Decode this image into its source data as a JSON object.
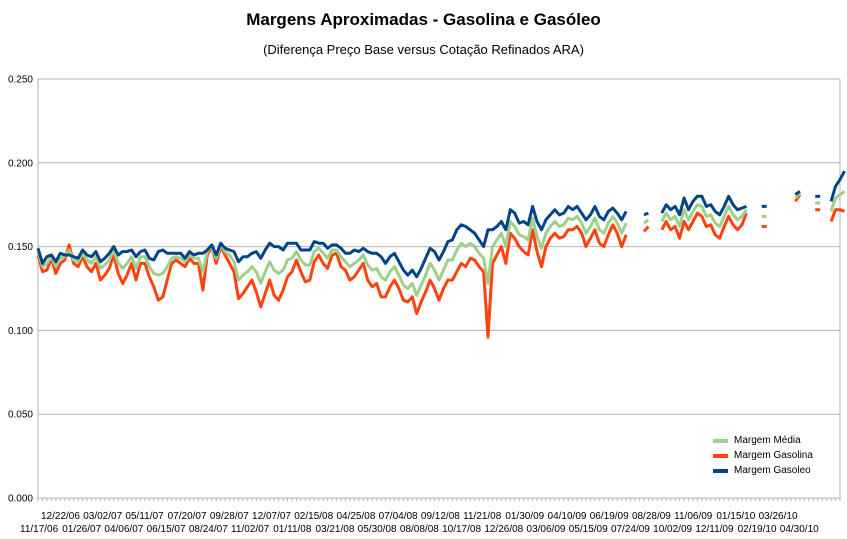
{
  "chart_data": {
    "type": "line",
    "title": "Margens Aproximadas - Gasolina e Gasóleo",
    "subtitle": "(Diferença Preço Base versus Cotação Refinados ARA)",
    "xlabel": "",
    "ylabel": "",
    "ylim": [
      0,
      0.25
    ],
    "y_ticks": [
      "0.000",
      "0.050",
      "0.100",
      "0.150",
      "0.200",
      "0.250"
    ],
    "x_tick_labels_top": [
      "12/22/06",
      "03/02/07",
      "05/11/07",
      "07/20/07",
      "09/28/07",
      "12/07/07",
      "02/15/08",
      "04/25/08",
      "07/04/08",
      "09/12/08",
      "11/21/08",
      "01/30/09",
      "04/10/09",
      "06/19/09",
      "08/28/09",
      "11/06/09",
      "01/15/10",
      "03/26/10"
    ],
    "x_tick_labels_bottom": [
      "11/17/06",
      "01/26/07",
      "04/06/07",
      "06/15/07",
      "08/24/07",
      "11/02/07",
      "01/11/08",
      "03/21/08",
      "05/30/08",
      "08/08/08",
      "10/17/08",
      "12/26/08",
      "03/06/09",
      "05/15/09",
      "07/24/09",
      "10/02/09",
      "12/11/09",
      "02/19/10",
      "04/30/10"
    ],
    "legend": [
      "Margem Média",
      "Margem Gasolina",
      "Margem Gasoleo"
    ],
    "colors": {
      "media": "#9fcf88",
      "gasolina": "#ff420e",
      "gasoleo": "#004586"
    },
    "x_week_range": [
      0,
      180
    ],
    "series": [
      {
        "name": "Margem Gasolina",
        "color": "#ff420e",
        "segments": [
          {
            "start": 0,
            "values": [
              0.145,
              0.135,
              0.136,
              0.143,
              0.134,
              0.14,
              0.142,
              0.151,
              0.14,
              0.138,
              0.144,
              0.138,
              0.135,
              0.14,
              0.13,
              0.133,
              0.137,
              0.145,
              0.134,
              0.128,
              0.133,
              0.14,
              0.13,
              0.14,
              0.14,
              0.132,
              0.126,
              0.118,
              0.12,
              0.13,
              0.14,
              0.142,
              0.14,
              0.138,
              0.143,
              0.14,
              0.14,
              0.124,
              0.145,
              0.15,
              0.14,
              0.15,
              0.145,
              0.14,
              0.135,
              0.119,
              0.122,
              0.126,
              0.13,
              0.123,
              0.114,
              0.122,
              0.13,
              0.121,
              0.118,
              0.124,
              0.132,
              0.135,
              0.142,
              0.135,
              0.129,
              0.13,
              0.141,
              0.145,
              0.14,
              0.137,
              0.145,
              0.146,
              0.138,
              0.136,
              0.13,
              0.132,
              0.136,
              0.14,
              0.13,
              0.126,
              0.128,
              0.12,
              0.12,
              0.126,
              0.13,
              0.125,
              0.118,
              0.117,
              0.12,
              0.11,
              0.117,
              0.123,
              0.13,
              0.125,
              0.118,
              0.125,
              0.13,
              0.13,
              0.135,
              0.14,
              0.138,
              0.143,
              0.142,
              0.138,
              0.135,
              0.096,
              0.14,
              0.145,
              0.15,
              0.14,
              0.158,
              0.155,
              0.15,
              0.147,
              0.145,
              0.16,
              0.147,
              0.138,
              0.15,
              0.155,
              0.158,
              0.155,
              0.156,
              0.16,
              0.16,
              0.162,
              0.158,
              0.15,
              0.155,
              0.16,
              0.152,
              0.15,
              0.157,
              0.163,
              0.158,
              0.15,
              0.157
            ]
          },
          {
            "start": 136,
            "values": [
              0.159,
              0.162
            ]
          },
          {
            "start": 140,
            "values": [
              0.16,
              0.165,
              0.16,
              0.162,
              0.155,
              0.165,
              0.16,
              0.165,
              0.17,
              0.168,
              0.162,
              0.163,
              0.157,
              0.155,
              0.162,
              0.168,
              0.163,
              0.16,
              0.163,
              0.17
            ]
          },
          {
            "start": 163,
            "values": [
              0.162
            ]
          },
          {
            "start": 170,
            "values": [
              0.177,
              0.181
            ]
          },
          {
            "start": 175,
            "values": [
              0.172
            ]
          },
          {
            "start": 178,
            "values": [
              0.165,
              0.172,
              0.172,
              0.171
            ]
          }
        ]
      },
      {
        "name": "Margem Média",
        "color": "#9fcf88",
        "segments": [
          {
            "start": 0,
            "values": [
              0.147,
              0.138,
              0.14,
              0.144,
              0.138,
              0.143,
              0.144,
              0.148,
              0.142,
              0.141,
              0.146,
              0.142,
              0.14,
              0.144,
              0.137,
              0.139,
              0.142,
              0.148,
              0.14,
              0.137,
              0.14,
              0.144,
              0.137,
              0.144,
              0.144,
              0.138,
              0.134,
              0.133,
              0.134,
              0.138,
              0.143,
              0.144,
              0.143,
              0.141,
              0.145,
              0.143,
              0.143,
              0.135,
              0.147,
              0.15,
              0.143,
              0.151,
              0.147,
              0.145,
              0.141,
              0.13,
              0.133,
              0.135,
              0.138,
              0.135,
              0.128,
              0.135,
              0.141,
              0.136,
              0.134,
              0.136,
              0.142,
              0.143,
              0.147,
              0.142,
              0.139,
              0.139,
              0.147,
              0.149,
              0.146,
              0.143,
              0.148,
              0.148,
              0.144,
              0.141,
              0.138,
              0.14,
              0.142,
              0.145,
              0.139,
              0.136,
              0.137,
              0.132,
              0.13,
              0.135,
              0.138,
              0.133,
              0.127,
              0.125,
              0.128,
              0.121,
              0.127,
              0.133,
              0.14,
              0.136,
              0.13,
              0.136,
              0.142,
              0.142,
              0.148,
              0.152,
              0.15,
              0.152,
              0.15,
              0.146,
              0.143,
              0.128,
              0.15,
              0.154,
              0.158,
              0.15,
              0.165,
              0.162,
              0.157,
              0.156,
              0.154,
              0.167,
              0.156,
              0.149,
              0.158,
              0.162,
              0.165,
              0.162,
              0.163,
              0.167,
              0.166,
              0.168,
              0.164,
              0.158,
              0.162,
              0.167,
              0.16,
              0.158,
              0.164,
              0.168,
              0.164,
              0.158,
              0.164
            ]
          },
          {
            "start": 136,
            "values": [
              0.164,
              0.166
            ]
          },
          {
            "start": 140,
            "values": [
              0.165,
              0.17,
              0.166,
              0.168,
              0.162,
              0.172,
              0.166,
              0.171,
              0.175,
              0.174,
              0.168,
              0.169,
              0.164,
              0.162,
              0.168,
              0.174,
              0.169,
              0.166,
              0.168,
              0.172
            ]
          },
          {
            "start": 163,
            "values": [
              0.168
            ]
          },
          {
            "start": 170,
            "values": [
              0.179,
              0.182
            ]
          },
          {
            "start": 175,
            "values": [
              0.176
            ]
          },
          {
            "start": 178,
            "values": [
              0.171,
              0.179,
              0.181,
              0.183
            ]
          }
        ]
      },
      {
        "name": "Margem Gasoleo",
        "color": "#004586",
        "segments": [
          {
            "start": 0,
            "values": [
              0.149,
              0.14,
              0.144,
              0.145,
              0.141,
              0.146,
              0.145,
              0.145,
              0.144,
              0.143,
              0.148,
              0.145,
              0.144,
              0.147,
              0.141,
              0.143,
              0.146,
              0.15,
              0.145,
              0.147,
              0.147,
              0.148,
              0.144,
              0.147,
              0.148,
              0.143,
              0.142,
              0.147,
              0.148,
              0.146,
              0.146,
              0.146,
              0.146,
              0.143,
              0.147,
              0.145,
              0.146,
              0.146,
              0.148,
              0.151,
              0.145,
              0.152,
              0.149,
              0.148,
              0.147,
              0.141,
              0.144,
              0.144,
              0.146,
              0.147,
              0.143,
              0.148,
              0.152,
              0.15,
              0.15,
              0.148,
              0.152,
              0.152,
              0.152,
              0.148,
              0.148,
              0.148,
              0.153,
              0.152,
              0.152,
              0.149,
              0.151,
              0.151,
              0.149,
              0.146,
              0.146,
              0.148,
              0.147,
              0.149,
              0.147,
              0.146,
              0.146,
              0.144,
              0.14,
              0.144,
              0.146,
              0.141,
              0.136,
              0.133,
              0.136,
              0.132,
              0.137,
              0.143,
              0.149,
              0.147,
              0.142,
              0.147,
              0.153,
              0.154,
              0.16,
              0.163,
              0.162,
              0.16,
              0.158,
              0.154,
              0.15,
              0.16,
              0.16,
              0.162,
              0.165,
              0.16,
              0.172,
              0.17,
              0.164,
              0.165,
              0.163,
              0.174,
              0.165,
              0.16,
              0.166,
              0.169,
              0.172,
              0.169,
              0.17,
              0.174,
              0.172,
              0.174,
              0.17,
              0.166,
              0.169,
              0.174,
              0.168,
              0.166,
              0.171,
              0.173,
              0.17,
              0.166,
              0.171
            ]
          },
          {
            "start": 136,
            "values": [
              0.169,
              0.17
            ]
          },
          {
            "start": 140,
            "values": [
              0.17,
              0.175,
              0.172,
              0.174,
              0.169,
              0.179,
              0.172,
              0.177,
              0.18,
              0.18,
              0.174,
              0.175,
              0.171,
              0.169,
              0.174,
              0.18,
              0.175,
              0.172,
              0.173,
              0.174
            ]
          },
          {
            "start": 163,
            "values": [
              0.174
            ]
          },
          {
            "start": 170,
            "values": [
              0.181,
              0.183
            ]
          },
          {
            "start": 175,
            "values": [
              0.18
            ]
          },
          {
            "start": 178,
            "values": [
              0.177,
              0.186,
              0.19,
              0.195
            ]
          }
        ]
      }
    ]
  }
}
